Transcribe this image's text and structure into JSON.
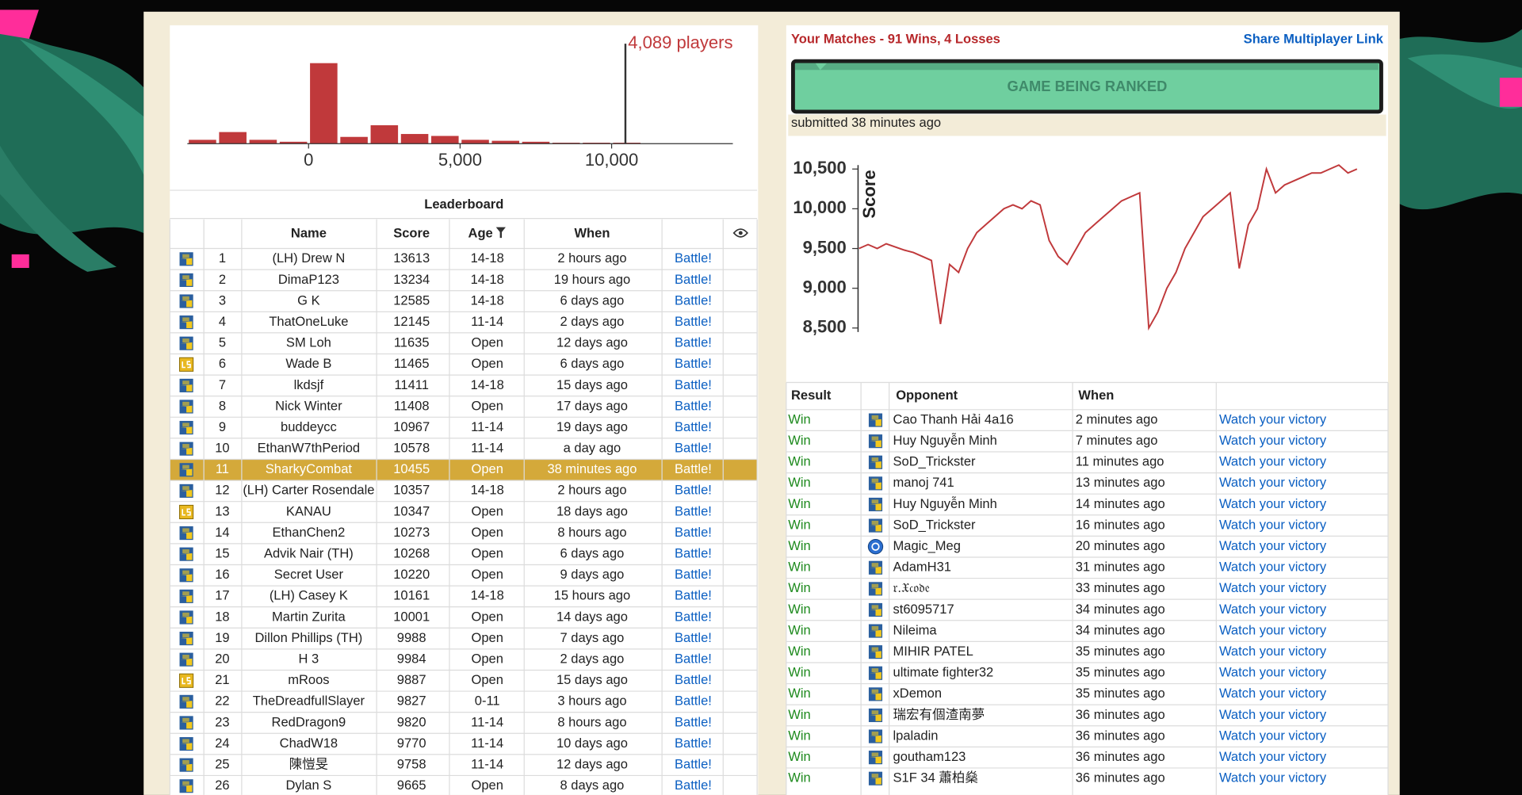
{
  "histogram": {
    "type": "histogram",
    "annotation": "4,089 players",
    "color": "#c0393b",
    "bins": [
      -4000,
      -3000,
      -2000,
      -1000,
      0,
      1000,
      2000,
      3000,
      4000,
      5000,
      6000,
      7000,
      8000,
      9000,
      10000,
      11000
    ],
    "values": [
      100,
      300,
      100,
      50,
      2075,
      175,
      475,
      250,
      200,
      100,
      75,
      50,
      25,
      25,
      25
    ],
    "xlim": [
      -4000,
      14000
    ],
    "xticks": [
      0,
      {
        "value": 5000,
        "label": "5,000"
      },
      {
        "value": 10000,
        "label": "10,000"
      }
    ],
    "marker": 10455
  },
  "leaderboard": {
    "title": "Leaderboard",
    "columns": [
      "Name",
      "Score",
      "Age",
      "When"
    ],
    "battle_label": "Battle!",
    "highlight": 10,
    "rows": [
      {
        "rank": 1,
        "name": "(LH) Drew N",
        "score": 13613,
        "age": "14-18",
        "when": "2 hours ago",
        "lang": "python"
      },
      {
        "rank": 2,
        "name": "DimaP123",
        "score": 13234,
        "age": "14-18",
        "when": "19 hours ago",
        "lang": "python"
      },
      {
        "rank": 3,
        "name": "G K",
        "score": 12585,
        "age": "14-18",
        "when": "6 days ago",
        "lang": "python"
      },
      {
        "rank": 4,
        "name": "ThatOneLuke",
        "score": 12145,
        "age": "11-14",
        "when": "2 days ago",
        "lang": "python"
      },
      {
        "rank": 5,
        "name": "SM Loh",
        "score": 11635,
        "age": "Open",
        "when": "12 days ago",
        "lang": "python"
      },
      {
        "rank": 6,
        "name": "Wade B",
        "score": 11465,
        "age": "Open",
        "when": "6 days ago",
        "lang": "javascript"
      },
      {
        "rank": 7,
        "name": "lkdsjf",
        "score": 11411,
        "age": "14-18",
        "when": "15 days ago",
        "lang": "python"
      },
      {
        "rank": 8,
        "name": "Nick Winter",
        "score": 11408,
        "age": "Open",
        "when": "17 days ago",
        "lang": "python"
      },
      {
        "rank": 9,
        "name": "buddeycc",
        "score": 10967,
        "age": "11-14",
        "when": "19 days ago",
        "lang": "python"
      },
      {
        "rank": 10,
        "name": "EthanW7thPeriod",
        "score": 10578,
        "age": "11-14",
        "when": "a day ago",
        "lang": "python"
      },
      {
        "rank": 11,
        "name": "SharkyCombat",
        "score": 10455,
        "age": "Open",
        "when": "38 minutes ago",
        "lang": "python"
      },
      {
        "rank": 12,
        "name": "(LH) Carter Rosendale",
        "score": 10357,
        "age": "14-18",
        "when": "2 hours ago",
        "lang": "python"
      },
      {
        "rank": 13,
        "name": "KANAU",
        "score": 10347,
        "age": "Open",
        "when": "18 days ago",
        "lang": "javascript"
      },
      {
        "rank": 14,
        "name": "EthanChen2",
        "score": 10273,
        "age": "Open",
        "when": "8 hours ago",
        "lang": "python"
      },
      {
        "rank": 15,
        "name": "Advik Nair (TH)",
        "score": 10268,
        "age": "Open",
        "when": "6 days ago",
        "lang": "python"
      },
      {
        "rank": 16,
        "name": "Secret User",
        "score": 10220,
        "age": "Open",
        "when": "9 days ago",
        "lang": "python"
      },
      {
        "rank": 17,
        "name": "(LH) Casey K",
        "score": 10161,
        "age": "14-18",
        "when": "15 hours ago",
        "lang": "python"
      },
      {
        "rank": 18,
        "name": "Martin Zurita",
        "score": 10001,
        "age": "Open",
        "when": "14 days ago",
        "lang": "python"
      },
      {
        "rank": 19,
        "name": "Dillon Phillips (TH)",
        "score": 9988,
        "age": "Open",
        "when": "7 days ago",
        "lang": "python"
      },
      {
        "rank": 20,
        "name": "H 3",
        "score": 9984,
        "age": "Open",
        "when": "2 days ago",
        "lang": "python"
      },
      {
        "rank": 21,
        "name": "mRoos",
        "score": 9887,
        "age": "Open",
        "when": "15 days ago",
        "lang": "javascript"
      },
      {
        "rank": 22,
        "name": "TheDreadfullSlayer",
        "score": 9827,
        "age": "0-11",
        "when": "3 hours ago",
        "lang": "python"
      },
      {
        "rank": 23,
        "name": "RedDragon9",
        "score": 9820,
        "age": "11-14",
        "when": "8 hours ago",
        "lang": "python"
      },
      {
        "rank": 24,
        "name": "ChadW18",
        "score": 9770,
        "age": "11-14",
        "when": "10 days ago",
        "lang": "python"
      },
      {
        "rank": 25,
        "name": "陳愷旻",
        "score": 9758,
        "age": "11-14",
        "when": "12 days ago",
        "lang": "python"
      },
      {
        "rank": 26,
        "name": "Dylan S",
        "score": 9665,
        "age": "Open",
        "when": "8 days ago",
        "lang": "python"
      }
    ]
  },
  "matches": {
    "title": "Your Matches - 91 Wins, 4 Losses",
    "share_link": "Share Multiplayer Link",
    "banner": "GAME BEING RANKED",
    "submitted": "submitted 38 minutes ago",
    "columns": [
      "Result",
      "Opponent",
      "When"
    ],
    "watch_label": "Watch your victory",
    "rows": [
      {
        "result": "Win",
        "opponent": "Cao Thanh Hải 4a16",
        "when": "2 minutes ago",
        "lang": "python"
      },
      {
        "result": "Win",
        "opponent": "Huy Nguyễn Minh",
        "when": "7 minutes ago",
        "lang": "python"
      },
      {
        "result": "Win",
        "opponent": "SoD_Trickster",
        "when": "11 minutes ago",
        "lang": "python"
      },
      {
        "result": "Win",
        "opponent": "manoj 741",
        "when": "13 minutes ago",
        "lang": "python"
      },
      {
        "result": "Win",
        "opponent": "Huy Nguyễn Minh",
        "when": "14 minutes ago",
        "lang": "python"
      },
      {
        "result": "Win",
        "opponent": "SoD_Trickster",
        "when": "16 minutes ago",
        "lang": "python"
      },
      {
        "result": "Win",
        "opponent": "Magic_Meg",
        "when": "20 minutes ago",
        "lang": "coffeescript"
      },
      {
        "result": "Win",
        "opponent": "AdamH31",
        "when": "31 minutes ago",
        "lang": "python"
      },
      {
        "result": "Win",
        "opponent": "𝔯.𝔛𝔠𝔬𝔡𝔢",
        "when": "33 minutes ago",
        "lang": "python"
      },
      {
        "result": "Win",
        "opponent": "st6095717",
        "when": "34 minutes ago",
        "lang": "python"
      },
      {
        "result": "Win",
        "opponent": "Nileima",
        "when": "34 minutes ago",
        "lang": "python"
      },
      {
        "result": "Win",
        "opponent": "MIHIR PATEL",
        "when": "35 minutes ago",
        "lang": "python"
      },
      {
        "result": "Win",
        "opponent": "ultimate fighter32",
        "when": "35 minutes ago",
        "lang": "python"
      },
      {
        "result": "Win",
        "opponent": "xDemon",
        "when": "35 minutes ago",
        "lang": "python"
      },
      {
        "result": "Win",
        "opponent": "瑞宏有個渣南夢",
        "when": "36 minutes ago",
        "lang": "python"
      },
      {
        "result": "Win",
        "opponent": "lpaladin",
        "when": "36 minutes ago",
        "lang": "python"
      },
      {
        "result": "Win",
        "opponent": "goutham123",
        "when": "36 minutes ago",
        "lang": "python"
      },
      {
        "result": "Win",
        "opponent": "S1F 34 蕭柏燊",
        "when": "36 minutes ago",
        "lang": "python"
      }
    ]
  },
  "score_chart": {
    "type": "line",
    "ylabel": "Score",
    "color": "#c0393b",
    "ylim": [
      8450,
      10550
    ],
    "yticks": [
      {
        "value": 8500,
        "label": "8,500"
      },
      {
        "value": 9000,
        "label": "9,000"
      },
      {
        "value": 9500,
        "label": "9,500"
      },
      {
        "value": 10000,
        "label": "10,000"
      },
      {
        "value": 10500,
        "label": "10,500"
      }
    ],
    "values": [
      9500,
      9550,
      9500,
      9560,
      9520,
      9480,
      9450,
      9400,
      9350,
      8550,
      9300,
      9200,
      9500,
      9700,
      9800,
      9900,
      10000,
      10050,
      10000,
      10100,
      10050,
      9600,
      9400,
      9300,
      9500,
      9700,
      9800,
      9900,
      10000,
      10100,
      10150,
      10200,
      8500,
      8700,
      9000,
      9200,
      9500,
      9700,
      9900,
      10000,
      10100,
      10200,
      9250,
      9800,
      10000,
      10500,
      10200,
      10300,
      10350,
      10400,
      10450,
      10450,
      10500,
      10550,
      10450,
      10500
    ]
  }
}
